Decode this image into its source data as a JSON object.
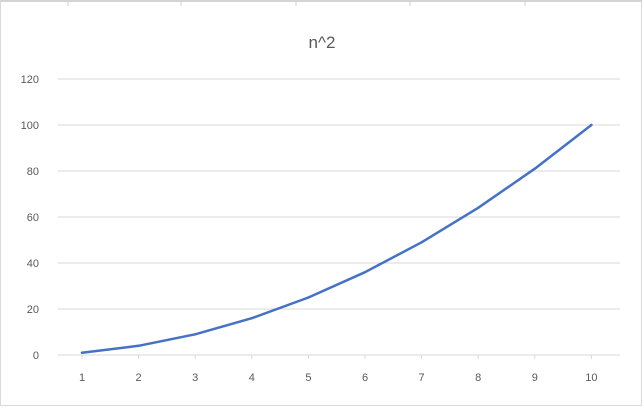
{
  "chart_data": {
    "type": "line",
    "title": "n^2",
    "xlabel": "",
    "ylabel": "",
    "categories": [
      1,
      2,
      3,
      4,
      5,
      6,
      7,
      8,
      9,
      10
    ],
    "series": [
      {
        "values": [
          1,
          4,
          9,
          16,
          25,
          36,
          49,
          64,
          81,
          100
        ],
        "color": "#4472c4"
      }
    ],
    "ylim": [
      0,
      120
    ],
    "yticks": [
      0,
      20,
      40,
      60,
      80,
      100,
      120
    ],
    "grid": true,
    "legend": "none",
    "colors": {
      "gridline": "#d9d9d9",
      "axis_text": "#595959",
      "title_text": "#595959"
    }
  }
}
